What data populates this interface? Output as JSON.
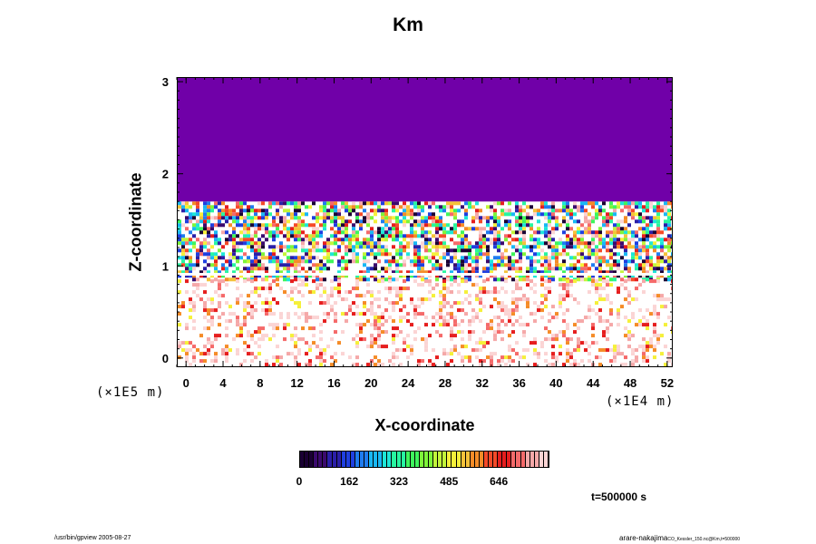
{
  "chart_data": {
    "type": "heatmap",
    "title": "Km",
    "xlabel": "X-coordinate",
    "ylabel": "Z-coordinate",
    "x_unit": "(×1E4 m)",
    "y_unit": "(×1E5 m)",
    "xlim": [
      -1,
      52.6
    ],
    "ylim": [
      -0.1,
      3.05
    ],
    "x_ticks": [
      "0",
      "4",
      "8",
      "12",
      "16",
      "20",
      "24",
      "28",
      "32",
      "36",
      "40",
      "44",
      "48",
      "52"
    ],
    "y_ticks": [
      "0",
      "1",
      "2",
      "3"
    ],
    "colorbar": {
      "labels": [
        "0",
        "162",
        "323",
        "485",
        "646"
      ],
      "range": [
        0,
        810
      ],
      "colors": [
        "#1a0033",
        "#3b0a6e",
        "#2b1fa8",
        "#1f3fe0",
        "#1f7cf0",
        "#19b8f5",
        "#1ee6d8",
        "#27f5a0",
        "#3ef55c",
        "#7ef53a",
        "#c2f53a",
        "#f5f03a",
        "#f5c23a",
        "#f58c28",
        "#f54a28",
        "#e61e1e",
        "#f56a6a",
        "#f5a8a8",
        "#fbd4d4"
      ]
    },
    "field_description_regions": {
      "top_layer_z": [
        1.7,
        3.05
      ],
      "top_layer_value": 0,
      "turbulent_band_z": [
        0.85,
        1.7
      ],
      "lower_layer_z": [
        -0.1,
        0.85
      ]
    },
    "colors": {
      "top_layer": "#7000a8",
      "background": "#ffffff"
    }
  },
  "annotation": {
    "time": "t=500000 s"
  },
  "footer": {
    "left": "/usr/bin/gpview 2005-08-27",
    "right": "arare-nakajima",
    "right_small": "CO_Kessler_150.nc@Km,t=500000"
  }
}
